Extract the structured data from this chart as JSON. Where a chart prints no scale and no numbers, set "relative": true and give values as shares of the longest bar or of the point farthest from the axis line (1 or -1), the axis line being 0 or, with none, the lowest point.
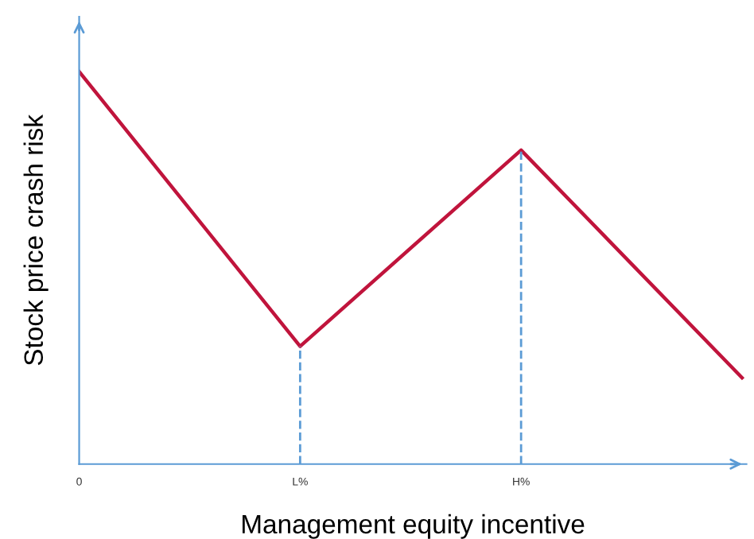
{
  "chart_data": {
    "type": "line",
    "relative": true,
    "xlabel": "Management equity incentive",
    "ylabel": "Stock price crash risk",
    "categories": [
      "0",
      "L%",
      "H%",
      null
    ],
    "series": [
      {
        "color": "#c0143c",
        "values": [
          1,
          0.3,
          0.8,
          0.22
        ]
      }
    ],
    "ref_lines": [
      {
        "axis": "x",
        "value": "L%",
        "color": "#5b9bd5",
        "line_style": "dashed"
      },
      {
        "axis": "x",
        "value": "H%",
        "color": "#5b9bd5",
        "line_style": "dashed"
      }
    ],
    "marker": "none",
    "line_style": "solid",
    "grid": false,
    "legend": false
  }
}
